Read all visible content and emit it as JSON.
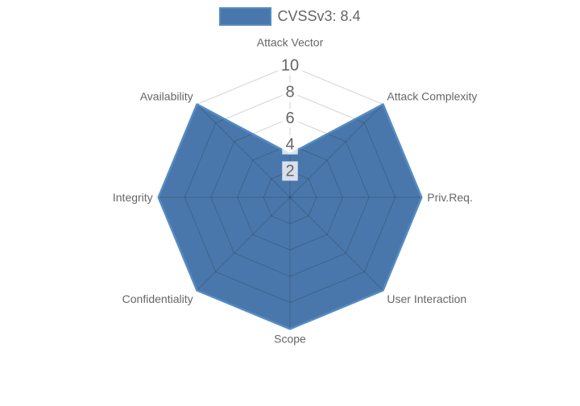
{
  "chart_data": {
    "type": "radar",
    "title": "",
    "categories": [
      "Attack Vector",
      "Attack Complexity",
      "Priv.Req.",
      "User Interaction",
      "Scope",
      "Confidentiality",
      "Integrity",
      "Availability"
    ],
    "series": [
      {
        "name": "CVSSv3: 8.4",
        "values": [
          3.3,
          10,
          10,
          10,
          10,
          10,
          10,
          10
        ]
      }
    ],
    "legend": {
      "label": "CVSSv3: 8.4",
      "position": "top"
    },
    "scale": {
      "min": 0,
      "max": 10,
      "ticks": [
        2,
        4,
        6,
        8,
        10
      ],
      "grid": "polygon",
      "grid_on": true,
      "angle_lines": true
    },
    "colors": {
      "fill": "#4a77ab",
      "border": "#558bc2",
      "grid": "rgba(0,0,0,0.15)",
      "tick_text": "#666666",
      "tick_backdrop": "rgba(255,255,255,0.78)",
      "label_text": "#666666",
      "legend_text": "#666666",
      "background": "#ffffff"
    }
  }
}
